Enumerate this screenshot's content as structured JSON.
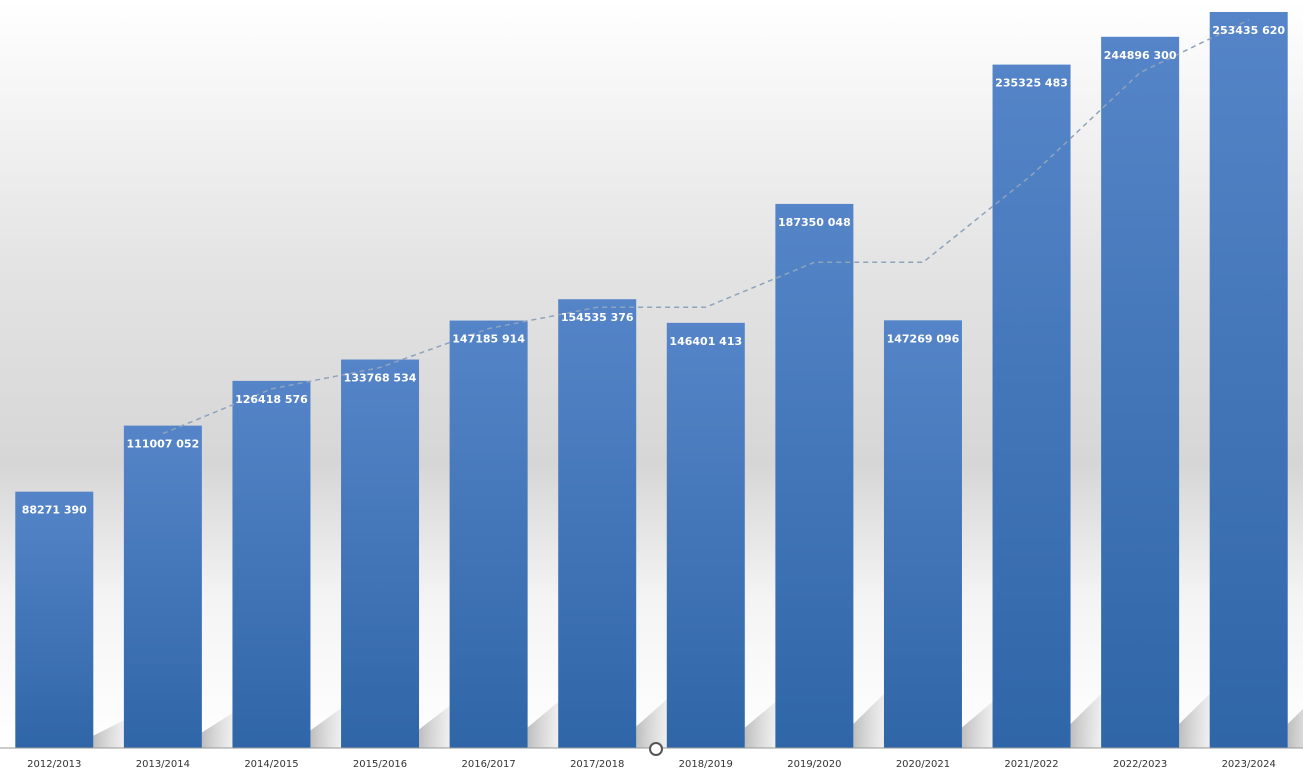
{
  "chart_data": {
    "type": "bar",
    "title": "",
    "xlabel": "",
    "ylabel": "",
    "categories": [
      "2012/2013",
      "2013/2014",
      "2014/2015",
      "2015/2016",
      "2016/2017",
      "2017/2018",
      "2018/2019",
      "2019/2020",
      "2020/2021",
      "2021/2022",
      "2022/2023",
      "2023/2024"
    ],
    "series": [
      {
        "values": [
          88271390,
          111007052,
          126418576,
          133768534,
          147185914,
          154535376,
          146401413,
          187350048,
          147269096,
          235325483,
          244896300,
          253435620
        ],
        "labels": [
          "88271 390",
          "111007 052",
          "126418 576",
          "133768 534",
          "147185 914",
          "154535 376",
          "146401 413",
          "187350 048",
          "147269 096",
          "235325 483",
          "244896 300",
          "253435 620"
        ]
      }
    ],
    "trendline": {
      "style": "dashed",
      "values": [
        null,
        111007052,
        126418576,
        133768534,
        147185914,
        154535376,
        154535376,
        170000000,
        170000000,
        200000000,
        235325483,
        253435620
      ]
    },
    "ylim": [
      0,
      253435620
    ],
    "grid": false,
    "legend": "none",
    "colors": {
      "bar_top": "#5585c8",
      "bar_bottom": "#2f66a8",
      "label": "#ffffff",
      "trendline": "#8fa3bd",
      "axis": "#999999"
    }
  }
}
